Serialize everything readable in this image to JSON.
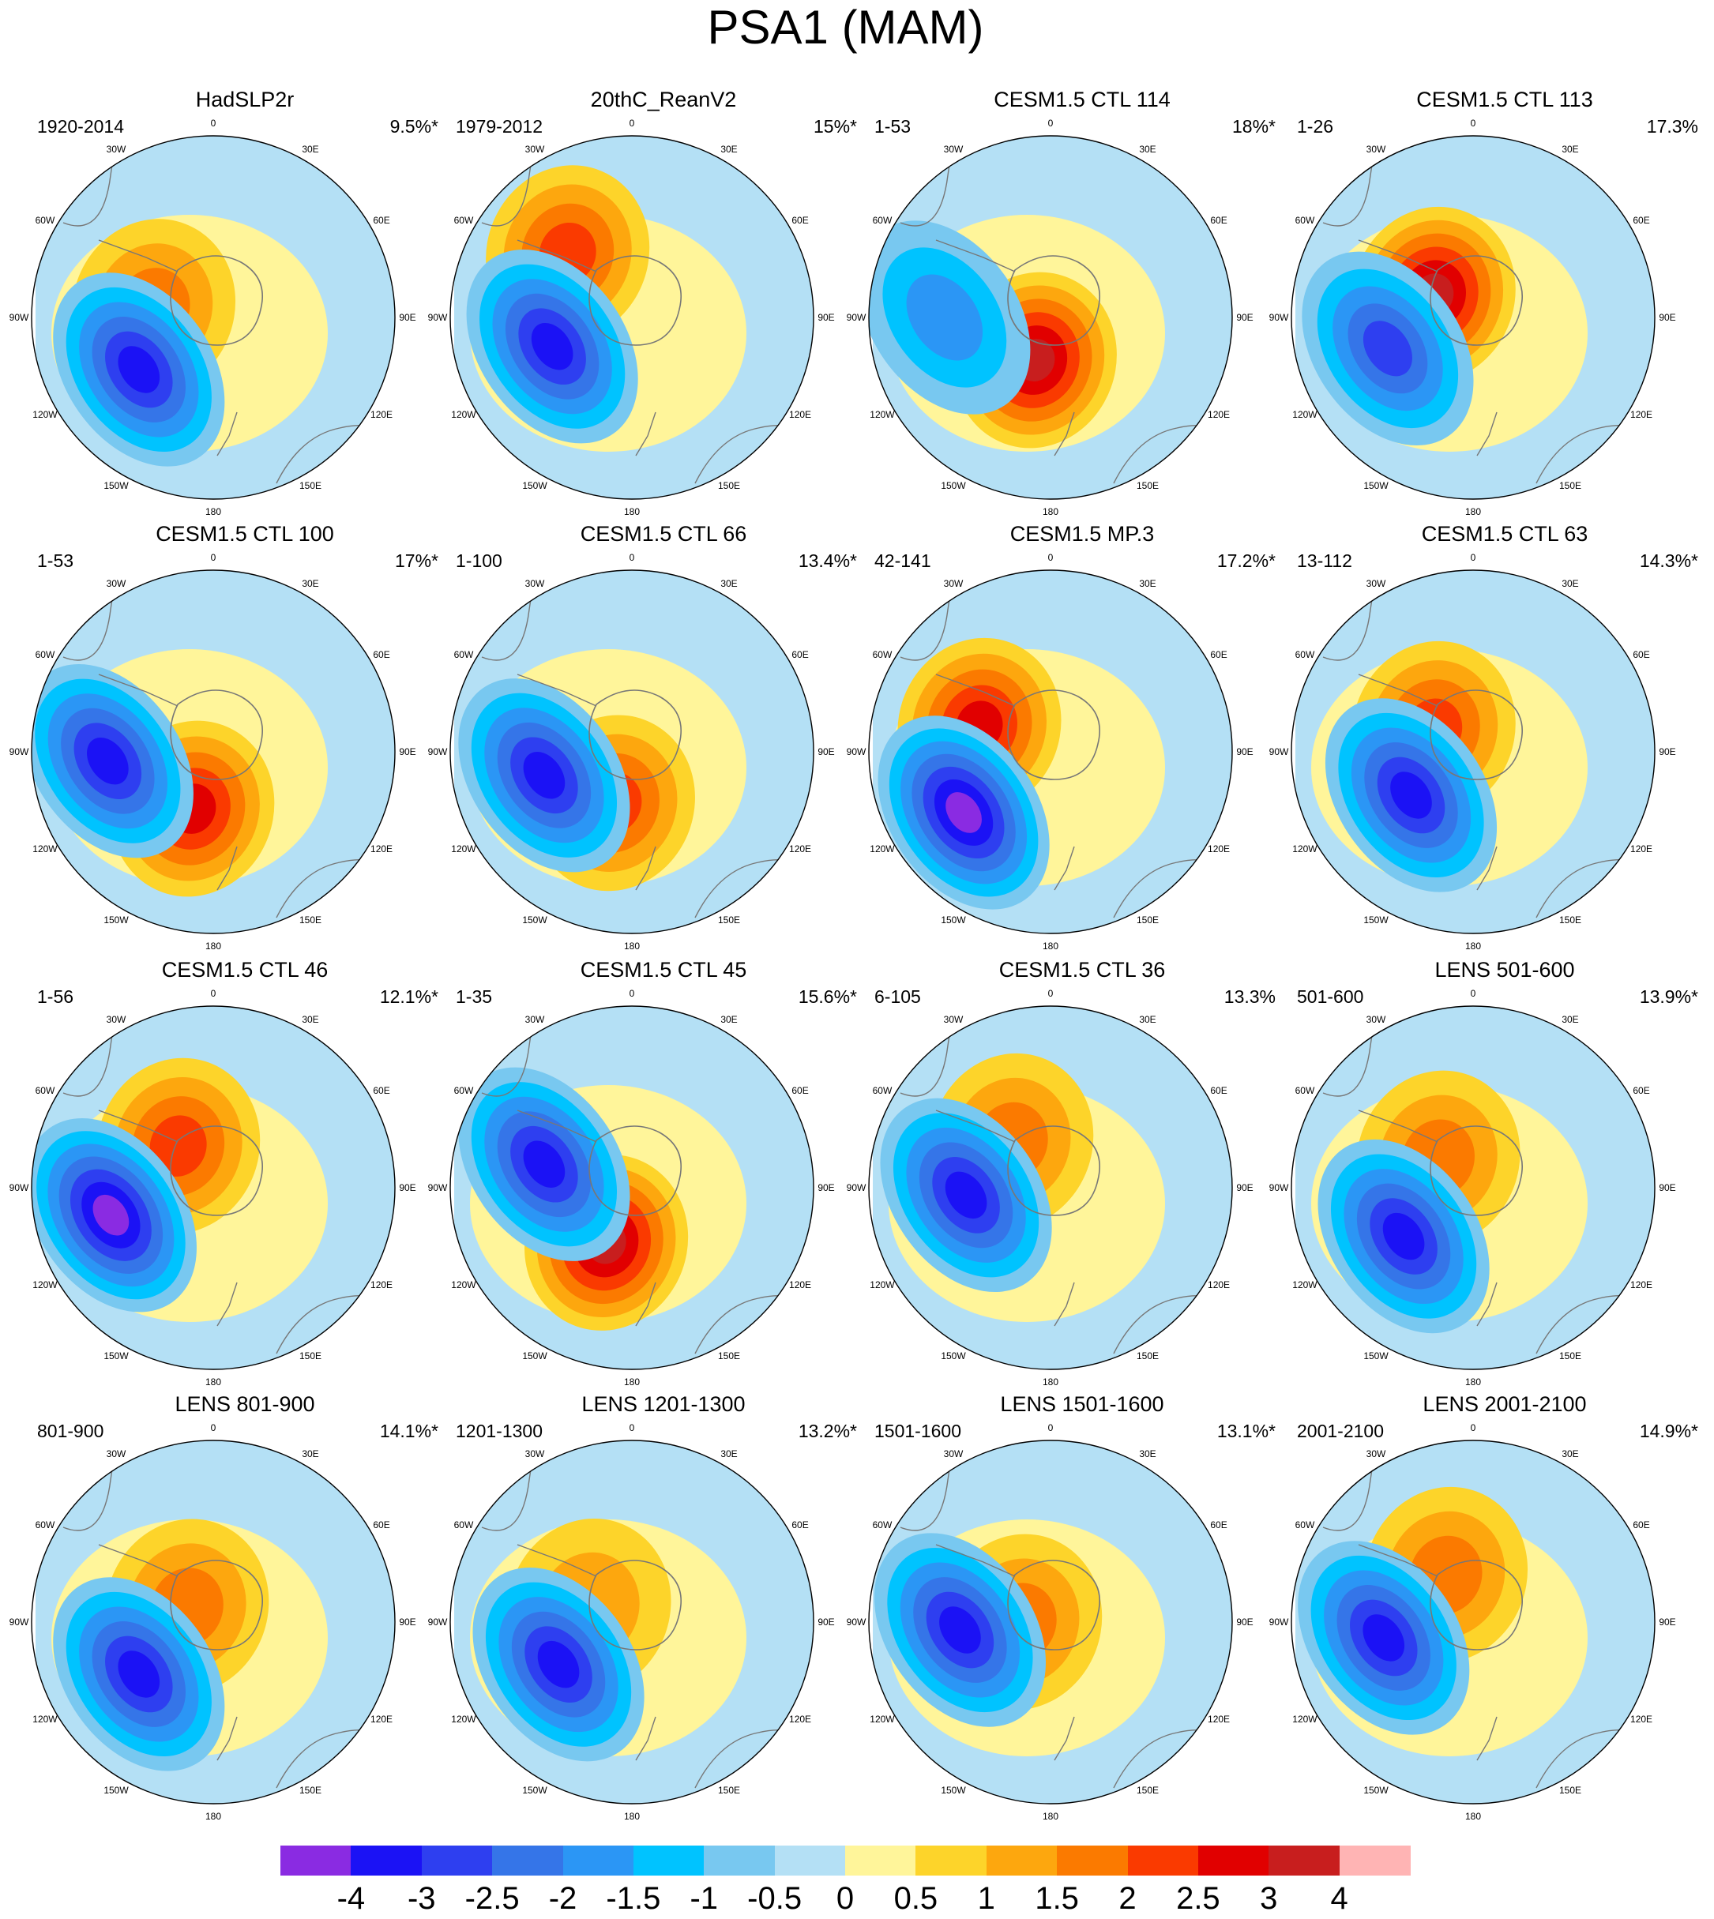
{
  "title": "PSA1 (MAM)",
  "colorbar": {
    "colors": [
      "#8a2be2",
      "#1b12f5",
      "#2e3ff0",
      "#3575e8",
      "#2b96f5",
      "#00c3ff",
      "#78c8f0",
      "#b4e0f5",
      "#fff59a",
      "#fdd42a",
      "#fda70e",
      "#fb7a00",
      "#fa3a00",
      "#e10000",
      "#c81e1e",
      "#ffb4b4"
    ],
    "labels": [
      "-4",
      "-3",
      "-2.5",
      "-2",
      "-1.5",
      "-1",
      "-0.5",
      "0",
      "0.5",
      "1",
      "1.5",
      "2",
      "2.5",
      "3",
      "4"
    ]
  },
  "lon_labels": [
    "0",
    "30E",
    "60E",
    "90E",
    "120E",
    "150E",
    "180",
    "150W",
    "120W",
    "90W",
    "60W",
    "30W"
  ],
  "panels": [
    {
      "title": "HadSLP2r",
      "period": "1920-2014",
      "variance": "9.5%*",
      "neg": {
        "lon": "125W",
        "lat": "-60",
        "min": "-3"
      },
      "pos": {
        "lon": "80W",
        "lat": "-70",
        "max": "1.5"
      }
    },
    {
      "title": "20thC_ReanV2",
      "period": "1979-2012",
      "variance": "15%*",
      "neg": {
        "lon": "110W",
        "lat": "-62",
        "min": "-3"
      },
      "pos": {
        "lon": "45W",
        "lat": "-60",
        "max": "2"
      }
    },
    {
      "title": "CESM1.5 CTL 114",
      "period": "1-53",
      "variance": "18%*",
      "neg": {
        "lon": "90W",
        "lat": "-55",
        "min": "-1.5"
      },
      "pos": {
        "lon": "160W",
        "lat": "-75",
        "max": "3"
      }
    },
    {
      "title": "CESM1.5 CTL 113",
      "period": "1-26",
      "variance": "17.3%",
      "neg": {
        "lon": "110W",
        "lat": "-60",
        "min": "-2.5"
      },
      "pos": {
        "lon": "60W",
        "lat": "-75",
        "max": "3"
      }
    },
    {
      "title": "CESM1.5 CTL 100",
      "period": "1-53",
      "variance": "17%*",
      "neg": {
        "lon": "95W",
        "lat": "-55",
        "min": "-3"
      },
      "pos": {
        "lon": "160W",
        "lat": "-70",
        "max": "2.5"
      }
    },
    {
      "title": "CESM1.5 CTL 66",
      "period": "1-100",
      "variance": "13.4%*",
      "neg": {
        "lon": "105W",
        "lat": "-60",
        "min": "-3"
      },
      "pos": {
        "lon": "160W",
        "lat": "-72",
        "max": "2"
      }
    },
    {
      "title": "CESM1.5 MP.3",
      "period": "42-141",
      "variance": "17.2%*",
      "neg": {
        "lon": "125W",
        "lat": "-55",
        "min": "-4"
      },
      "pos": {
        "lon": "70W",
        "lat": "-65",
        "max": "2.5"
      }
    },
    {
      "title": "CESM1.5 CTL 63",
      "period": "13-112",
      "variance": "14.3%*",
      "neg": {
        "lon": "125W",
        "lat": "-65",
        "min": "-3"
      },
      "pos": {
        "lon": "60W",
        "lat": "-75",
        "max": "2"
      }
    },
    {
      "title": "CESM1.5 CTL 46",
      "period": "1-56",
      "variance": "12.1%*",
      "neg": {
        "lon": "105W",
        "lat": "-55",
        "min": "-4"
      },
      "pos": {
        "lon": "40W",
        "lat": "-72",
        "max": "2"
      }
    },
    {
      "title": "CESM1.5 CTL 45",
      "period": "1-35",
      "variance": "15.6%*",
      "neg": {
        "lon": "75W",
        "lat": "-60",
        "min": "-3"
      },
      "pos": {
        "lon": "155W",
        "lat": "-70",
        "max": "3"
      }
    },
    {
      "title": "CESM1.5 CTL 36",
      "period": "6-105",
      "variance": "13.3%",
      "neg": {
        "lon": "95W",
        "lat": "-62",
        "min": "-3"
      },
      "pos": {
        "lon": "40W",
        "lat": "-70",
        "max": "1.5"
      }
    },
    {
      "title": "LENS 501-600",
      "period": "501-600",
      "variance": "13.9%*",
      "neg": {
        "lon": "125W",
        "lat": "-62",
        "min": "-3"
      },
      "pos": {
        "lon": "50W",
        "lat": "-75",
        "max": "1.5"
      }
    },
    {
      "title": "LENS 801-900",
      "period": "801-900",
      "variance": "14.1%*",
      "neg": {
        "lon": "125W",
        "lat": "-60",
        "min": "-3"
      },
      "pos": {
        "lon": "60W",
        "lat": "-80",
        "max": "1.5"
      }
    },
    {
      "title": "LENS 1201-1300",
      "period": "1201-1300",
      "variance": "13.2%*",
      "neg": {
        "lon": "120W",
        "lat": "-62",
        "min": "-3"
      },
      "pos": {
        "lon": "70W",
        "lat": "-75",
        "max": "1"
      }
    },
    {
      "title": "LENS 1501-1600",
      "period": "1501-1600",
      "variance": "13.1%*",
      "neg": {
        "lon": "95W",
        "lat": "-60",
        "min": "-3"
      },
      "pos": {
        "lon": "90W",
        "lat": "-80",
        "max": "1.5"
      }
    },
    {
      "title": "LENS 2001-2100",
      "period": "2001-2100",
      "variance": "14.9%*",
      "neg": {
        "lon": "100W",
        "lat": "-60",
        "min": "-3"
      },
      "pos": {
        "lon": "30W",
        "lat": "-72",
        "max": "1.5"
      }
    }
  ]
}
